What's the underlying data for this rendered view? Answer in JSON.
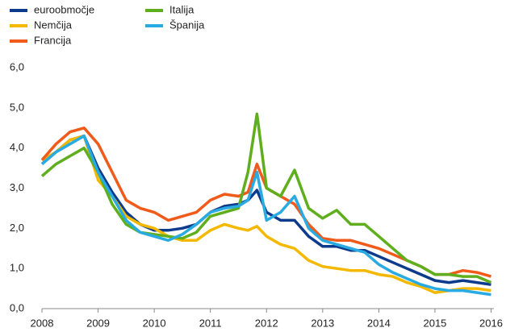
{
  "chart_data": {
    "type": "line",
    "x": [
      2008,
      2008.25,
      2008.5,
      2008.75,
      2009,
      2009.25,
      2009.5,
      2009.75,
      2010,
      2010.25,
      2010.5,
      2010.75,
      2011,
      2011.25,
      2011.5,
      2011.67,
      2011.83,
      2012,
      2012.25,
      2012.5,
      2012.75,
      2013,
      2013.25,
      2013.5,
      2013.75,
      2014,
      2014.25,
      2014.5,
      2014.75,
      2015,
      2015.25,
      2015.5,
      2015.75,
      2016
    ],
    "series": [
      {
        "name": "euroobmočje",
        "color": "#0d3b8c",
        "values": [
          3.6,
          3.9,
          4.2,
          4.3,
          3.5,
          2.9,
          2.4,
          2.1,
          1.95,
          1.95,
          2.0,
          2.1,
          2.4,
          2.55,
          2.6,
          2.7,
          2.95,
          2.4,
          2.2,
          2.2,
          1.8,
          1.55,
          1.55,
          1.45,
          1.45,
          1.3,
          1.15,
          1.0,
          0.85,
          0.7,
          0.65,
          0.7,
          0.65,
          0.6
        ]
      },
      {
        "name": "Nemčija",
        "color": "#f5b800",
        "values": [
          3.7,
          3.9,
          4.2,
          4.3,
          3.2,
          2.8,
          2.3,
          2.1,
          2.0,
          1.8,
          1.7,
          1.7,
          1.95,
          2.1,
          2.0,
          1.95,
          2.05,
          1.8,
          1.6,
          1.5,
          1.2,
          1.05,
          1.0,
          0.95,
          0.95,
          0.85,
          0.8,
          0.65,
          0.55,
          0.4,
          0.45,
          0.5,
          0.5,
          0.45
        ]
      },
      {
        "name": "Francija",
        "color": "#f05a1a",
        "values": [
          3.7,
          4.1,
          4.4,
          4.5,
          4.1,
          3.4,
          2.7,
          2.5,
          2.4,
          2.2,
          2.3,
          2.4,
          2.7,
          2.85,
          2.8,
          2.9,
          3.6,
          3.0,
          2.8,
          2.6,
          2.1,
          1.75,
          1.7,
          1.7,
          1.6,
          1.5,
          1.35,
          1.2,
          1.05,
          0.85,
          0.85,
          0.95,
          0.9,
          0.8
        ]
      },
      {
        "name": "Italija",
        "color": "#5fae1e",
        "values": [
          3.3,
          3.6,
          3.8,
          4.0,
          3.4,
          2.6,
          2.1,
          1.9,
          1.85,
          1.8,
          1.75,
          1.9,
          2.3,
          2.4,
          2.5,
          3.4,
          4.85,
          3.0,
          2.8,
          3.45,
          2.5,
          2.25,
          2.45,
          2.1,
          2.1,
          1.8,
          1.5,
          1.2,
          1.05,
          0.85,
          0.85,
          0.8,
          0.8,
          0.65
        ]
      },
      {
        "name": "Španija",
        "color": "#29abe2",
        "values": [
          3.6,
          3.9,
          4.1,
          4.3,
          3.4,
          2.8,
          2.2,
          1.9,
          1.8,
          1.7,
          1.85,
          2.1,
          2.4,
          2.5,
          2.55,
          2.7,
          3.4,
          2.2,
          2.4,
          2.8,
          2.0,
          1.7,
          1.6,
          1.5,
          1.4,
          1.1,
          0.9,
          0.75,
          0.6,
          0.5,
          0.45,
          0.45,
          0.4,
          0.35
        ]
      }
    ],
    "xlim": [
      2008,
      2016.05
    ],
    "xticks": [
      2008,
      2009,
      2010,
      2011,
      2012,
      2013,
      2014,
      2015,
      2016
    ],
    "ylim": [
      0,
      6
    ],
    "yticks": [
      {
        "value": 0,
        "label": "0,0"
      },
      {
        "value": 1,
        "label": "1,0"
      },
      {
        "value": 2,
        "label": "2,0"
      },
      {
        "value": 3,
        "label": "3,0"
      },
      {
        "value": 4,
        "label": "4,0"
      },
      {
        "value": 5,
        "label": "5,0"
      },
      {
        "value": 6,
        "label": "6,0"
      }
    ],
    "grid": false
  }
}
